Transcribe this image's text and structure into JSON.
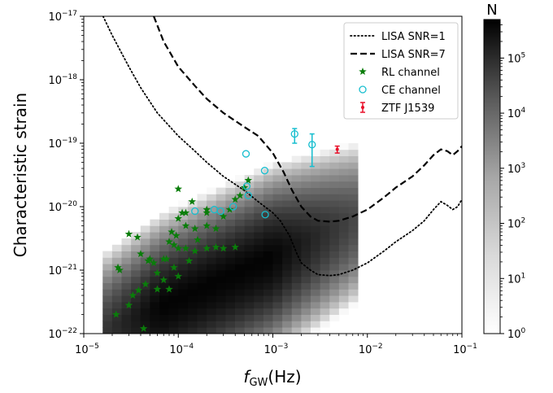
{
  "chart_data": {
    "type": "scatter",
    "x_scale": "log",
    "y_scale": "log",
    "xlim": [
      1e-05,
      0.1
    ],
    "ylim": [
      1e-22,
      1e-17
    ],
    "xlabel_main": "f",
    "xlabel_sub": "GW",
    "xlabel_unit": "(Hz)",
    "ylabel": "Characteristic strain",
    "x_ticks": [
      {
        "value": 1e-05,
        "base": "10",
        "exp": "−5"
      },
      {
        "value": 0.0001,
        "base": "10",
        "exp": "−4"
      },
      {
        "value": 0.001,
        "base": "10",
        "exp": "−3"
      },
      {
        "value": 0.01,
        "base": "10",
        "exp": "−2"
      },
      {
        "value": 0.1,
        "base": "10",
        "exp": "−1"
      }
    ],
    "y_ticks": [
      {
        "value": 1e-22,
        "base": "10",
        "exp": "−22"
      },
      {
        "value": 1e-21,
        "base": "10",
        "exp": "−21"
      },
      {
        "value": 1e-20,
        "base": "10",
        "exp": "−20"
      },
      {
        "value": 1e-19,
        "base": "10",
        "exp": "−19"
      },
      {
        "value": 1e-18,
        "base": "10",
        "exp": "−18"
      },
      {
        "value": 1e-17,
        "base": "10",
        "exp": "−17"
      }
    ],
    "colorbar": {
      "label": "N",
      "scale": "log",
      "range": [
        1,
        500000
      ],
      "ticks": [
        {
          "value": 1,
          "base": "10",
          "exp": "0"
        },
        {
          "value": 10,
          "base": "10",
          "exp": "1"
        },
        {
          "value": 100,
          "base": "10",
          "exp": "2"
        },
        {
          "value": 1000,
          "base": "10",
          "exp": "3"
        },
        {
          "value": 10000,
          "base": "10",
          "exp": "4"
        },
        {
          "value": 100000,
          "base": "10",
          "exp": "5"
        }
      ],
      "colormap": "greys"
    },
    "legend": {
      "position": "upper-right",
      "entries": [
        {
          "label": "LISA SNR=1",
          "style": "dotted",
          "color": "#000000"
        },
        {
          "label": "LISA SNR=7",
          "style": "dashed",
          "color": "#000000"
        },
        {
          "label": "RL channel",
          "style": "star",
          "color": "#0a7d0a"
        },
        {
          "label": "CE channel",
          "style": "open-circle",
          "color": "#17becf"
        },
        {
          "label": "ZTF J1539",
          "style": "errorbar",
          "color": "#e8102a"
        }
      ]
    },
    "series": [
      {
        "name": "LISA SNR=1",
        "style": "dotted",
        "x": [
          1.6e-05,
          2e-05,
          3e-05,
          4e-05,
          6e-05,
          0.0001,
          0.00015,
          0.0002,
          0.0003,
          0.0005,
          0.0007,
          0.001,
          0.0012,
          0.0015,
          0.0018,
          0.002,
          0.0025,
          0.003,
          0.004,
          0.005,
          0.007,
          0.01,
          0.015,
          0.02,
          0.03,
          0.04,
          0.05,
          0.06,
          0.07,
          0.08,
          0.09,
          0.1
        ],
        "y": [
          1e-17,
          5e-18,
          1.6e-18,
          7.5e-19,
          3e-19,
          1.3e-19,
          7.5e-20,
          5e-20,
          3e-20,
          1.8e-20,
          1.2e-20,
          8e-21,
          6e-21,
          3.5e-21,
          1.8e-21,
          1.3e-21,
          1e-21,
          8.5e-22,
          8.2e-22,
          8.5e-22,
          1e-21,
          1.3e-21,
          2e-21,
          2.8e-21,
          4.2e-21,
          6e-21,
          9e-21,
          1.2e-20,
          1.05e-20,
          9e-21,
          1e-20,
          1.3e-20
        ]
      },
      {
        "name": "LISA SNR=7",
        "style": "dashed",
        "x": [
          5.5e-05,
          7e-05,
          0.0001,
          0.00015,
          0.0002,
          0.0003,
          0.0005,
          0.0007,
          0.001,
          0.0013,
          0.0016,
          0.002,
          0.0025,
          0.003,
          0.004,
          0.005,
          0.007,
          0.01,
          0.015,
          0.02,
          0.03,
          0.04,
          0.05,
          0.06,
          0.07,
          0.08,
          0.09,
          0.1
        ],
        "y": [
          1e-17,
          4e-18,
          1.6e-18,
          8e-19,
          5e-19,
          3e-19,
          1.8e-19,
          1.3e-19,
          7e-20,
          3.5e-20,
          1.8e-20,
          1e-20,
          7e-21,
          6e-21,
          5.8e-21,
          6e-21,
          7e-21,
          9e-21,
          1.4e-20,
          2e-20,
          3e-20,
          4.5e-20,
          6.5e-20,
          8e-20,
          7.5e-20,
          6.5e-20,
          7.5e-20,
          9e-20
        ]
      },
      {
        "name": "RL channel",
        "style": "star",
        "x": [
          0.0001,
          0.00014,
          0.00011,
          0.0001,
          8.5e-05,
          9.5e-05,
          0.00012,
          0.00015,
          0.0002,
          0.00025,
          0.0003,
          0.00035,
          0.0004,
          0.00045,
          0.0005,
          0.00055,
          0.0003,
          0.0002,
          0.00025,
          0.0002,
          0.00015,
          0.00012,
          0.0001,
          9e-05,
          8e-05,
          7e-05,
          3e-05,
          3.7e-05,
          2.3e-05,
          2.4e-05,
          4e-05,
          4.8e-05,
          5e-05,
          5.5e-05,
          6e-05,
          4.5e-05,
          3.8e-05,
          3.3e-05,
          3e-05,
          2.2e-05,
          4.3e-05,
          7.5e-05,
          9e-05,
          0.0001,
          6e-05,
          7e-05,
          8e-05,
          0.00013,
          0.00012,
          0.00016,
          0.0002,
          0.0004
        ],
        "y": [
          1.9e-20,
          1.2e-20,
          8e-21,
          6.5e-21,
          4e-21,
          3.5e-21,
          5e-21,
          4.5e-21,
          5e-21,
          4.5e-21,
          7e-21,
          9e-21,
          1.3e-20,
          1.5e-20,
          2e-20,
          2.6e-20,
          2.2e-21,
          2.2e-21,
          2.3e-21,
          8e-21,
          2e-21,
          2.2e-21,
          2.2e-21,
          2.5e-21,
          2.8e-21,
          1.5e-21,
          3.7e-21,
          3.3e-21,
          1.1e-21,
          1e-21,
          1.8e-21,
          1.4e-21,
          1.5e-21,
          1.3e-21,
          5e-22,
          6e-22,
          4.8e-22,
          4e-22,
          2.8e-22,
          2e-22,
          1.2e-22,
          1.5e-21,
          1.1e-21,
          8e-22,
          9e-22,
          7e-22,
          5e-22,
          1.4e-21,
          8e-21,
          3e-21,
          9e-21,
          2.3e-21
        ]
      },
      {
        "name": "CE channel",
        "style": "open-circle",
        "x": [
          0.00052,
          0.00082,
          0.0017,
          0.0026,
          0.00053,
          0.00055,
          0.00038,
          0.00028,
          0.00024,
          0.00015,
          0.00083
        ],
        "y": [
          6.8e-20,
          3.7e-20,
          1.4e-19,
          9.5e-20,
          2.1e-20,
          1.5e-20,
          1e-20,
          8.5e-21,
          9e-21,
          8.5e-21,
          7.5e-21
        ],
        "y_err_low": [
          null,
          null,
          1e-19,
          4.3e-20,
          null,
          null,
          null,
          null,
          null,
          null,
          null
        ],
        "y_err_high": [
          null,
          null,
          1.7e-19,
          1.4e-19,
          null,
          null,
          null,
          null,
          null,
          null,
          null
        ]
      },
      {
        "name": "ZTF J1539",
        "style": "errorbar",
        "x": [
          0.0048
        ],
        "y": [
          8e-20
        ],
        "y_err_low": [
          7e-20
        ],
        "y_err_high": [
          9e-20
        ]
      }
    ],
    "histogram": {
      "description_units": "log10 counts per log-frequency/log-strain bin",
      "x_bin_edges_log10": [
        -4.8,
        -4.7,
        -4.6,
        -4.5,
        -4.4,
        -4.3,
        -4.2,
        -4.1,
        -4.0,
        -3.9,
        -3.8,
        -3.7,
        -3.6,
        -3.5,
        -3.4,
        -3.3,
        -3.2,
        -3.1,
        -3.0,
        -2.9,
        -2.8,
        -2.7,
        -2.6,
        -2.5,
        -2.4,
        -2.3,
        -2.2,
        -2.1
      ],
      "y_bin_edges_log10": [
        -22.0,
        -21.9,
        -21.8,
        -21.7,
        -21.6,
        -21.5,
        -21.4,
        -21.3,
        -21.2,
        -21.1,
        -21.0,
        -20.9,
        -20.8,
        -20.7,
        -20.6,
        -20.5,
        -20.4,
        -20.3,
        -20.2,
        -20.1,
        -20.0,
        -19.9,
        -19.8,
        -19.7,
        -19.6,
        -19.5,
        -19.4,
        -19.3,
        -19.2,
        -19.1,
        -19.0,
        -18.9,
        -18.8
      ],
      "ridge": {
        "slope": 0.67,
        "x0_log10": -4.0,
        "y0_log10": -21.4,
        "peak_log10_count": 5.6,
        "width": 0.55
      }
    }
  }
}
